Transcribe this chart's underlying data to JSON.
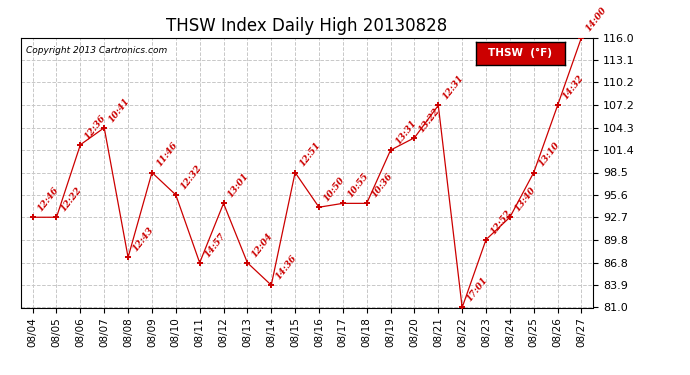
{
  "title": "THSW Index Daily High 20130828",
  "copyright": "Copyright 2013 Cartronics.com",
  "legend_label": "THSW  (°F)",
  "dates": [
    "08/04",
    "08/05",
    "08/06",
    "08/07",
    "08/08",
    "08/09",
    "08/10",
    "08/11",
    "08/12",
    "08/13",
    "08/14",
    "08/15",
    "08/16",
    "08/17",
    "08/18",
    "08/19",
    "08/20",
    "08/21",
    "08/22",
    "08/23",
    "08/24",
    "08/25",
    "08/26",
    "08/27"
  ],
  "values": [
    92.7,
    92.7,
    102.1,
    104.3,
    87.5,
    98.5,
    95.6,
    86.8,
    94.5,
    86.8,
    83.9,
    98.5,
    94.0,
    94.5,
    94.5,
    101.4,
    103.0,
    107.2,
    81.0,
    89.8,
    92.7,
    98.5,
    107.2,
    116.0
  ],
  "labels": [
    "12:46",
    "12:22",
    "12:36",
    "10:41",
    "12:43",
    "11:46",
    "12:32",
    "14:57",
    "13:01",
    "12:04",
    "14:36",
    "12:51",
    "10:50",
    "10:55",
    "10:36",
    "13:31",
    "13:22",
    "12:31",
    "17:01",
    "12:52",
    "13:40",
    "13:10",
    "14:32",
    "14:00"
  ],
  "ylim_min": 81.0,
  "ylim_max": 116.0,
  "ytick_values": [
    81.0,
    83.9,
    86.8,
    89.8,
    92.7,
    95.6,
    98.5,
    101.4,
    104.3,
    107.2,
    110.2,
    113.1,
    116.0
  ],
  "line_color": "#cc0000",
  "bg_color": "#ffffff",
  "grid_color": "#c8c8c8",
  "title_fontsize": 12,
  "annot_fontsize": 6.5,
  "tick_fontsize": 7.5,
  "ytick_fontsize": 8.0
}
